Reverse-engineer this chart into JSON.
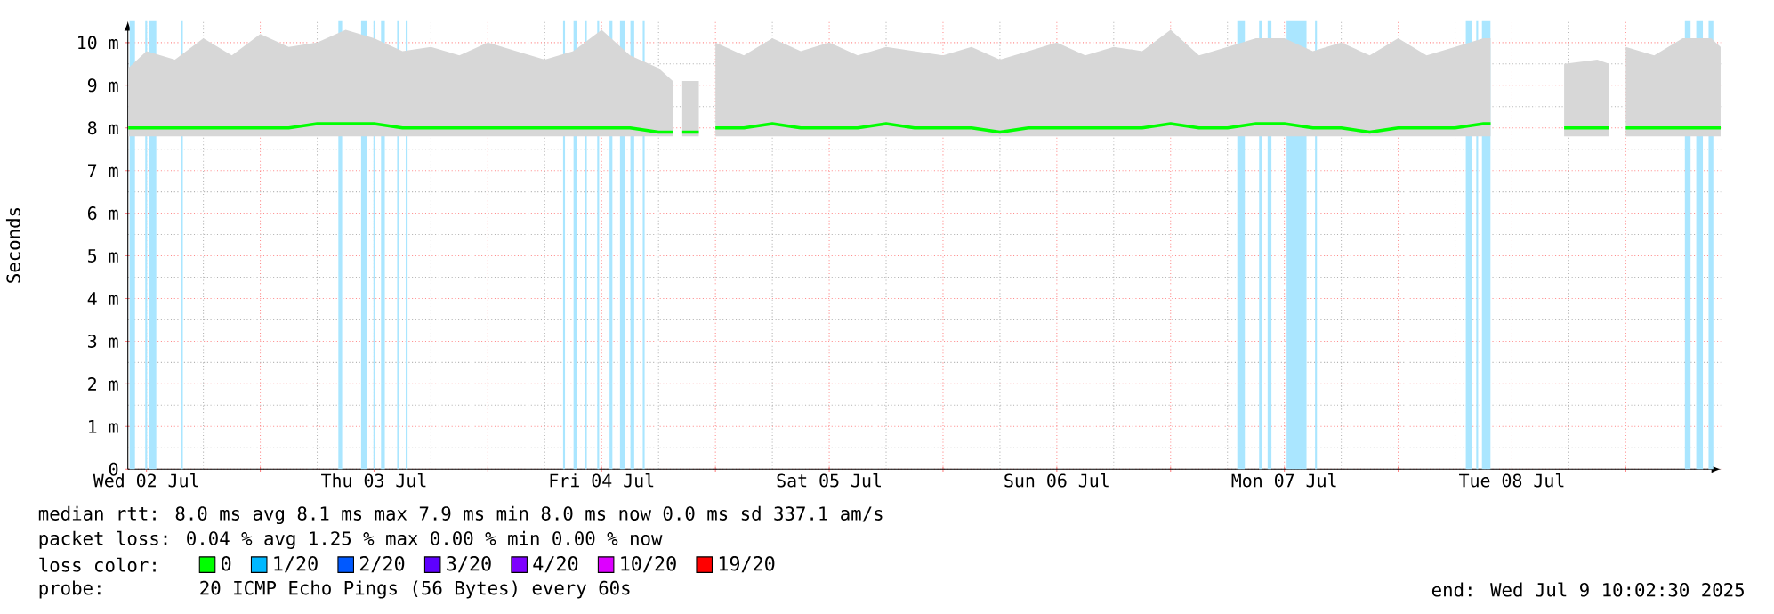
{
  "chart_data": {
    "type": "line",
    "ylabel": "Seconds",
    "legend_title": "loss color:",
    "legend": "bottom",
    "grid": true,
    "xlim": [
      "2025-07-02T10:02",
      "2025-07-09T10:02"
    ],
    "xticks": [
      {
        "value": "2025-07-02T12:00",
        "label": "Wed 02 Jul"
      },
      {
        "value": "2025-07-03T00:00",
        "label": null
      },
      {
        "value": "2025-07-03T12:00",
        "label": "Thu 03 Jul"
      },
      {
        "value": "2025-07-04T00:00",
        "label": null
      },
      {
        "value": "2025-07-04T12:00",
        "label": "Fri 04 Jul"
      },
      {
        "value": "2025-07-05T00:00",
        "label": null
      },
      {
        "value": "2025-07-05T12:00",
        "label": "Sat 05 Jul"
      },
      {
        "value": "2025-07-06T00:00",
        "label": null
      },
      {
        "value": "2025-07-06T12:00",
        "label": "Sun 06 Jul"
      },
      {
        "value": "2025-07-07T00:00",
        "label": null
      },
      {
        "value": "2025-07-07T12:00",
        "label": "Mon 07 Jul"
      },
      {
        "value": "2025-07-08T00:00",
        "label": null
      },
      {
        "value": "2025-07-08T12:00",
        "label": "Tue 08 Jul"
      },
      {
        "value": "2025-07-09T00:00",
        "label": null
      }
    ],
    "ylim": [
      0,
      10.5
    ],
    "yticks": [
      0,
      {
        "value": 1,
        "label": "1 m"
      },
      {
        "value": 2,
        "label": "2 m"
      },
      {
        "value": 3,
        "label": "3 m"
      },
      {
        "value": 4,
        "label": "4 m"
      },
      {
        "value": 5,
        "label": "5 m"
      },
      {
        "value": 6,
        "label": "6 m"
      },
      {
        "value": 7,
        "label": "7 m"
      },
      {
        "value": 8,
        "label": "8 m"
      },
      {
        "value": 9,
        "label": "9 m"
      },
      {
        "value": 10,
        "label": "10 m"
      }
    ],
    "series": [
      {
        "name": "0",
        "color": "#00ff00",
        "x": [
          "2025-07-02T10:05",
          "2025-07-02T12:00",
          "2025-07-02T15:00",
          "2025-07-02T18:00",
          "2025-07-02T21:00",
          "2025-07-03T00:00",
          "2025-07-03T03:00",
          "2025-07-03T06:00",
          "2025-07-03T09:00",
          "2025-07-03T12:00",
          "2025-07-03T15:00",
          "2025-07-03T18:00",
          "2025-07-03T21:00",
          "2025-07-04T00:00",
          "2025-07-04T03:00",
          "2025-07-04T06:00",
          "2025-07-04T09:00",
          "2025-07-04T12:00",
          "2025-07-04T15:00",
          "2025-07-04T18:00",
          "2025-07-04T19:30",
          "2025-07-04T20:00",
          "2025-07-04T20:30",
          "2025-07-04T22:15",
          "2025-07-04T23:00",
          "2025-07-05T00:00",
          "2025-07-05T03:00",
          "2025-07-05T06:00",
          "2025-07-05T09:00",
          "2025-07-05T12:00",
          "2025-07-05T15:00",
          "2025-07-05T18:00",
          "2025-07-05T21:00",
          "2025-07-06T00:00",
          "2025-07-06T03:00",
          "2025-07-06T06:00",
          "2025-07-06T09:00",
          "2025-07-06T12:00",
          "2025-07-06T15:00",
          "2025-07-06T18:00",
          "2025-07-06T21:00",
          "2025-07-07T00:00",
          "2025-07-07T03:00",
          "2025-07-07T06:00",
          "2025-07-07T09:00",
          "2025-07-07T12:00",
          "2025-07-07T15:00",
          "2025-07-07T18:00",
          "2025-07-07T21:00",
          "2025-07-08T00:00",
          "2025-07-08T03:00",
          "2025-07-08T06:00",
          "2025-07-08T09:00",
          "2025-07-08T09:45",
          "2025-07-08T12:00",
          "2025-07-08T17:30",
          "2025-07-08T21:00",
          "2025-07-08T22:15",
          "2025-07-08T23:00",
          "2025-07-09T00:00",
          "2025-07-09T03:00",
          "2025-07-09T06:00",
          "2025-07-09T09:00",
          "2025-07-09T10:00"
        ],
        "values": [
          8.0,
          8.0,
          8.0,
          8.0,
          8.0,
          8.0,
          8.0,
          8.1,
          8.1,
          8.1,
          8.0,
          8.0,
          8.0,
          8.0,
          8.0,
          8.0,
          8.0,
          8.0,
          8.0,
          7.9,
          7.9,
          null,
          7.9,
          7.9,
          null,
          8.0,
          8.0,
          8.1,
          8.0,
          8.0,
          8.0,
          8.1,
          8.0,
          8.0,
          8.0,
          7.9,
          8.0,
          8.0,
          8.0,
          8.0,
          8.0,
          8.1,
          8.0,
          8.0,
          8.1,
          8.1,
          8.0,
          8.0,
          7.9,
          8.0,
          8.0,
          8.0,
          8.1,
          8.1,
          null,
          8.0,
          8.0,
          8.0,
          null,
          8.0,
          8.0,
          8.0,
          8.0,
          8.0
        ],
        "lower": [
          7.8,
          7.8,
          7.8,
          7.8,
          7.8,
          7.8,
          7.8,
          7.8,
          7.8,
          7.8,
          7.8,
          7.8,
          7.8,
          7.8,
          7.8,
          7.8,
          7.8,
          7.8,
          7.8,
          7.8,
          7.8,
          null,
          7.8,
          7.8,
          null,
          7.8,
          7.8,
          7.8,
          7.8,
          7.8,
          7.8,
          7.8,
          7.8,
          7.8,
          7.8,
          7.8,
          7.8,
          7.8,
          7.8,
          7.8,
          7.8,
          7.8,
          7.8,
          7.8,
          7.8,
          7.8,
          7.8,
          7.8,
          7.8,
          7.8,
          7.8,
          7.8,
          7.8,
          7.8,
          null,
          7.8,
          7.8,
          7.8,
          null,
          7.8,
          7.8,
          7.8,
          7.8,
          7.8
        ],
        "upper": [
          9.4,
          9.8,
          9.6,
          10.1,
          9.7,
          10.2,
          9.9,
          10.0,
          10.3,
          10.1,
          9.8,
          9.9,
          9.7,
          10.0,
          9.8,
          9.6,
          9.8,
          10.3,
          9.7,
          9.4,
          9.1,
          null,
          9.1,
          9.1,
          null,
          10.0,
          9.7,
          10.1,
          9.8,
          10.0,
          9.7,
          9.9,
          9.8,
          9.7,
          9.9,
          9.6,
          9.8,
          10.0,
          9.7,
          9.9,
          9.8,
          10.3,
          9.7,
          9.9,
          10.1,
          10.1,
          9.8,
          10.0,
          9.7,
          10.1,
          9.7,
          9.9,
          10.1,
          10.1,
          null,
          9.5,
          9.6,
          9.5,
          null,
          9.9,
          9.7,
          10.1,
          10.1,
          9.9
        ]
      },
      {
        "name": "1/20",
        "color": "#00b8ff"
      },
      {
        "name": "2/20",
        "color": "#0059ff"
      },
      {
        "name": "3/20",
        "color": "#5e00ff"
      },
      {
        "name": "4/20",
        "color": "#7e00ff"
      },
      {
        "name": "10/20",
        "color": "#dd00ff"
      },
      {
        "name": "19/20",
        "color": "#ff0000"
      }
    ],
    "bands": [
      {
        "axis": "x",
        "from": "2025-07-02T10:13",
        "to": "2025-07-02T10:47",
        "color": "#aae6ff"
      },
      {
        "axis": "x",
        "from": "2025-07-02T11:52",
        "to": "2025-07-02T12:04",
        "color": "#aae6ff"
      },
      {
        "axis": "x",
        "from": "2025-07-02T12:16",
        "to": "2025-07-02T13:02",
        "color": "#aae6ff"
      },
      {
        "axis": "x",
        "from": "2025-07-02T15:38",
        "to": "2025-07-02T15:50",
        "color": "#aae6ff"
      },
      {
        "axis": "x",
        "from": "2025-07-03T08:14",
        "to": "2025-07-03T08:38",
        "color": "#aae6ff"
      },
      {
        "axis": "x",
        "from": "2025-07-03T10:38",
        "to": "2025-07-03T11:14",
        "color": "#aae6ff"
      },
      {
        "axis": "x",
        "from": "2025-07-03T11:56",
        "to": "2025-07-03T12:08",
        "color": "#aae6ff"
      },
      {
        "axis": "x",
        "from": "2025-07-03T12:44",
        "to": "2025-07-03T13:08",
        "color": "#aae6ff"
      },
      {
        "axis": "x",
        "from": "2025-07-03T14:26",
        "to": "2025-07-03T14:38",
        "color": "#aae6ff"
      },
      {
        "axis": "x",
        "from": "2025-07-03T15:20",
        "to": "2025-07-03T15:32",
        "color": "#aae6ff"
      },
      {
        "axis": "x",
        "from": "2025-07-04T07:56",
        "to": "2025-07-04T08:08",
        "color": "#aae6ff"
      },
      {
        "axis": "x",
        "from": "2025-07-04T09:02",
        "to": "2025-07-04T09:26",
        "color": "#aae6ff"
      },
      {
        "axis": "x",
        "from": "2025-07-04T10:14",
        "to": "2025-07-04T10:26",
        "color": "#aae6ff"
      },
      {
        "axis": "x",
        "from": "2025-07-04T11:32",
        "to": "2025-07-04T11:44",
        "color": "#aae6ff"
      },
      {
        "axis": "x",
        "from": "2025-07-04T12:50",
        "to": "2025-07-04T13:08",
        "color": "#aae6ff"
      },
      {
        "axis": "x",
        "from": "2025-07-04T13:56",
        "to": "2025-07-04T14:26",
        "color": "#aae6ff"
      },
      {
        "axis": "x",
        "from": "2025-07-04T15:02",
        "to": "2025-07-04T15:26",
        "color": "#aae6ff"
      },
      {
        "axis": "x",
        "from": "2025-07-04T16:20",
        "to": "2025-07-04T16:32",
        "color": "#aae6ff"
      },
      {
        "axis": "x",
        "from": "2025-07-07T07:02",
        "to": "2025-07-07T07:50",
        "color": "#aae6ff"
      },
      {
        "axis": "x",
        "from": "2025-07-07T09:20",
        "to": "2025-07-07T09:38",
        "color": "#aae6ff"
      },
      {
        "axis": "x",
        "from": "2025-07-07T10:14",
        "to": "2025-07-07T10:38",
        "color": "#aae6ff"
      },
      {
        "axis": "x",
        "from": "2025-07-07T12:14",
        "to": "2025-07-07T14:20",
        "color": "#aae6ff"
      },
      {
        "axis": "x",
        "from": "2025-07-07T15:14",
        "to": "2025-07-07T15:26",
        "color": "#aae6ff"
      },
      {
        "axis": "x",
        "from": "2025-07-08T07:08",
        "to": "2025-07-08T07:44",
        "color": "#aae6ff"
      },
      {
        "axis": "x",
        "from": "2025-07-08T08:14",
        "to": "2025-07-08T08:26",
        "color": "#aae6ff"
      },
      {
        "axis": "x",
        "from": "2025-07-08T08:50",
        "to": "2025-07-08T09:44",
        "color": "#aae6ff"
      },
      {
        "axis": "x",
        "from": "2025-07-09T06:14",
        "to": "2025-07-09T06:50",
        "color": "#aae6ff"
      },
      {
        "axis": "x",
        "from": "2025-07-09T07:26",
        "to": "2025-07-09T08:08",
        "color": "#aae6ff"
      },
      {
        "axis": "x",
        "from": "2025-07-09T08:44",
        "to": "2025-07-09T09:14",
        "color": "#aae6ff"
      }
    ],
    "annotations": [
      "median rtt: 8.0 ms avg 8.1 ms max 7.9 ms min 8.0 ms now 0.0 ms sd 337.1 am/s",
      "packet loss: 0.04 % avg 1.25 % max 0.00 % min 0.00 % now",
      "probe:",
      "20 ICMP Echo Pings (56 Bytes) every 60s",
      "end: Wed Jul 9 10:02:30 2025"
    ]
  }
}
